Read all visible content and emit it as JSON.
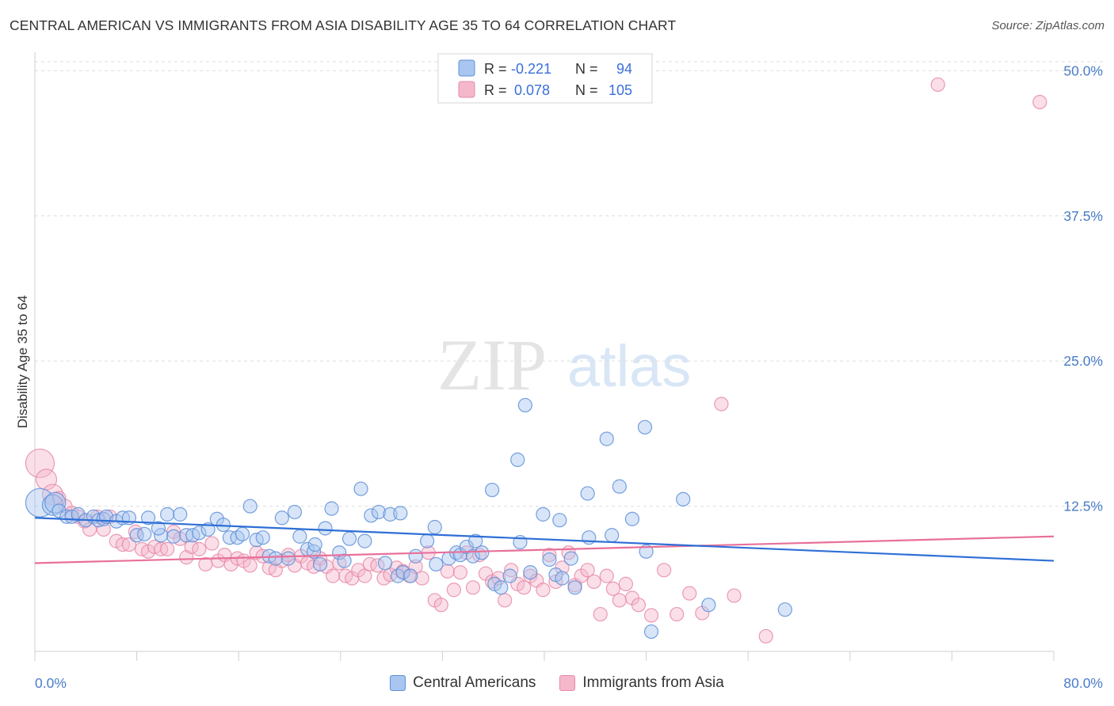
{
  "title": "CENTRAL AMERICAN VS IMMIGRANTS FROM ASIA DISABILITY AGE 35 TO 64 CORRELATION CHART",
  "source": "Source: ZipAtlas.com",
  "watermark": {
    "zip": "ZIP",
    "atlas": "atlas"
  },
  "colors": {
    "blue_fill": "#a9c6f0",
    "blue_stroke": "#5d8fd8",
    "blue_line": "#2e6fd6",
    "pink_fill": "#f5b8cb",
    "pink_stroke": "#e889a8",
    "pink_line": "#e8709a",
    "tick_text": "#4a7cc7",
    "grid": "#dedede"
  },
  "legend_box": {
    "rows": [
      {
        "r_label": "R =",
        "r_value": "-0.221",
        "n_label": "N =",
        "n_value": "94"
      },
      {
        "r_label": "R =",
        "r_value": "0.078",
        "n_label": "N =",
        "n_value": "105"
      }
    ]
  },
  "bottom_legend": [
    "Central Americans",
    "Immigrants from Asia"
  ],
  "chart_data": {
    "type": "scatter",
    "title": "CENTRAL AMERICAN VS IMMIGRANTS FROM ASIA DISABILITY AGE 35 TO 64 CORRELATION CHART",
    "xlabel": "",
    "ylabel": "Disability Age 35 to 64",
    "xlim": [
      0,
      80
    ],
    "ylim": [
      0,
      52
    ],
    "x_tick_labels": [
      "0.0%",
      "80.0%"
    ],
    "y_ticks": [
      12.5,
      25.0,
      37.5,
      50.0
    ],
    "y_tick_labels": [
      "12.5%",
      "25.0%",
      "37.5%",
      "50.0%"
    ],
    "grid": "horizontal dashed",
    "legend": "top-center",
    "series": [
      {
        "name": "Central Americans",
        "r": -0.221,
        "n": 94,
        "trend": {
          "x": [
            0,
            80
          ],
          "y": [
            11.5,
            7.8
          ]
        },
        "points": [
          [
            0.4,
            12.8
          ],
          [
            1.4,
            12.6
          ],
          [
            1.6,
            12.8
          ],
          [
            1.9,
            12.1
          ],
          [
            2.5,
            11.6
          ],
          [
            2.9,
            11.6
          ],
          [
            3.4,
            11.8
          ],
          [
            4.0,
            11.3
          ],
          [
            4.6,
            11.6
          ],
          [
            5.0,
            11.3
          ],
          [
            5.4,
            11.4
          ],
          [
            5.6,
            11.6
          ],
          [
            6.4,
            11.2
          ],
          [
            6.9,
            11.5
          ],
          [
            7.4,
            11.5
          ],
          [
            8.0,
            10.0
          ],
          [
            8.6,
            10.1
          ],
          [
            8.9,
            11.5
          ],
          [
            9.9,
            10.0
          ],
          [
            9.7,
            10.6
          ],
          [
            10.4,
            11.8
          ],
          [
            10.9,
            9.9
          ],
          [
            11.4,
            11.8
          ],
          [
            11.9,
            10.0
          ],
          [
            12.4,
            10.0
          ],
          [
            12.9,
            10.2
          ],
          [
            13.6,
            10.5
          ],
          [
            14.3,
            11.4
          ],
          [
            14.8,
            10.9
          ],
          [
            15.3,
            9.8
          ],
          [
            15.9,
            9.8
          ],
          [
            16.3,
            10.1
          ],
          [
            16.9,
            12.5
          ],
          [
            17.4,
            9.6
          ],
          [
            17.9,
            9.8
          ],
          [
            18.4,
            8.2
          ],
          [
            18.9,
            8.0
          ],
          [
            19.4,
            11.5
          ],
          [
            19.9,
            8.0
          ],
          [
            20.4,
            12.0
          ],
          [
            20.8,
            9.9
          ],
          [
            21.4,
            8.8
          ],
          [
            21.9,
            8.6
          ],
          [
            22.4,
            7.5
          ],
          [
            22.8,
            10.6
          ],
          [
            23.3,
            12.3
          ],
          [
            23.9,
            8.5
          ],
          [
            24.3,
            7.8
          ],
          [
            24.7,
            9.7
          ],
          [
            25.6,
            14.0
          ],
          [
            25.9,
            9.5
          ],
          [
            26.4,
            11.7
          ],
          [
            27.0,
            12.0
          ],
          [
            27.5,
            7.6
          ],
          [
            27.9,
            11.8
          ],
          [
            28.5,
            6.5
          ],
          [
            28.7,
            11.9
          ],
          [
            28.9,
            6.8
          ],
          [
            29.5,
            6.5
          ],
          [
            29.9,
            8.2
          ],
          [
            30.8,
            9.5
          ],
          [
            31.4,
            10.7
          ],
          [
            31.5,
            7.5
          ],
          [
            32.5,
            8.0
          ],
          [
            33.1,
            8.5
          ],
          [
            33.4,
            8.3
          ],
          [
            33.9,
            9.0
          ],
          [
            34.4,
            8.2
          ],
          [
            34.6,
            9.5
          ],
          [
            35.1,
            8.5
          ],
          [
            35.9,
            13.9
          ],
          [
            36.1,
            5.8
          ],
          [
            36.6,
            5.5
          ],
          [
            37.3,
            6.5
          ],
          [
            37.9,
            16.5
          ],
          [
            38.1,
            9.4
          ],
          [
            38.9,
            6.8
          ],
          [
            39.9,
            11.8
          ],
          [
            40.4,
            7.9
          ],
          [
            40.9,
            6.6
          ],
          [
            41.2,
            11.3
          ],
          [
            41.4,
            6.3
          ],
          [
            42.1,
            8.0
          ],
          [
            42.4,
            5.5
          ],
          [
            43.4,
            13.6
          ],
          [
            44.9,
            18.3
          ],
          [
            45.3,
            10.0
          ],
          [
            45.9,
            14.2
          ],
          [
            46.9,
            11.4
          ],
          [
            47.9,
            19.3
          ],
          [
            48.4,
            1.7
          ],
          [
            50.9,
            13.1
          ],
          [
            52.9,
            4.0
          ],
          [
            58.9,
            3.6
          ],
          [
            38.5,
            21.2
          ],
          [
            43.5,
            9.8
          ],
          [
            48.0,
            8.6
          ],
          [
            22.0,
            9.2
          ]
        ],
        "sizes": [
          [
            0.4,
            "xl"
          ],
          [
            1.4,
            "l"
          ],
          [
            1.6,
            "l"
          ]
        ]
      },
      {
        "name": "Immigrants from Asia",
        "r": 0.078,
        "n": 105,
        "trend": {
          "x": [
            0,
            80
          ],
          "y": [
            7.6,
            9.9
          ]
        },
        "points": [
          [
            0.4,
            16.2
          ],
          [
            0.9,
            14.8
          ],
          [
            1.4,
            13.5
          ],
          [
            1.9,
            13.2
          ],
          [
            2.4,
            12.5
          ],
          [
            2.9,
            11.9
          ],
          [
            3.4,
            11.6
          ],
          [
            3.9,
            11.2
          ],
          [
            4.3,
            10.5
          ],
          [
            4.9,
            11.6
          ],
          [
            5.4,
            10.5
          ],
          [
            5.9,
            11.6
          ],
          [
            6.4,
            9.5
          ],
          [
            6.9,
            9.2
          ],
          [
            7.4,
            9.2
          ],
          [
            7.9,
            10.3
          ],
          [
            8.4,
            8.8
          ],
          [
            8.9,
            8.6
          ],
          [
            9.4,
            9.0
          ],
          [
            9.9,
            8.8
          ],
          [
            10.4,
            8.8
          ],
          [
            10.9,
            10.3
          ],
          [
            11.4,
            9.7
          ],
          [
            11.9,
            8.1
          ],
          [
            12.3,
            9.0
          ],
          [
            12.9,
            8.8
          ],
          [
            13.4,
            7.5
          ],
          [
            13.9,
            9.3
          ],
          [
            14.4,
            7.8
          ],
          [
            14.9,
            8.3
          ],
          [
            15.4,
            7.5
          ],
          [
            15.9,
            8.0
          ],
          [
            16.4,
            7.8
          ],
          [
            16.9,
            7.4
          ],
          [
            17.4,
            8.5
          ],
          [
            17.9,
            8.2
          ],
          [
            18.4,
            7.2
          ],
          [
            18.9,
            7.0
          ],
          [
            19.4,
            7.8
          ],
          [
            19.9,
            8.3
          ],
          [
            20.4,
            7.4
          ],
          [
            20.9,
            8.2
          ],
          [
            21.4,
            7.6
          ],
          [
            21.9,
            7.3
          ],
          [
            22.4,
            8.0
          ],
          [
            22.9,
            7.3
          ],
          [
            23.4,
            6.5
          ],
          [
            23.9,
            7.6
          ],
          [
            24.4,
            6.5
          ],
          [
            24.9,
            6.3
          ],
          [
            25.4,
            7.0
          ],
          [
            25.9,
            6.5
          ],
          [
            26.3,
            7.5
          ],
          [
            26.9,
            7.4
          ],
          [
            27.4,
            6.3
          ],
          [
            27.9,
            6.6
          ],
          [
            28.4,
            7.2
          ],
          [
            28.9,
            6.9
          ],
          [
            29.4,
            6.5
          ],
          [
            29.9,
            7.3
          ],
          [
            30.4,
            6.3
          ],
          [
            30.9,
            8.5
          ],
          [
            31.4,
            4.4
          ],
          [
            31.9,
            4.0
          ],
          [
            32.4,
            6.9
          ],
          [
            32.9,
            5.3
          ],
          [
            33.4,
            6.8
          ],
          [
            33.9,
            8.5
          ],
          [
            34.4,
            5.5
          ],
          [
            34.9,
            8.3
          ],
          [
            35.4,
            6.7
          ],
          [
            35.9,
            6.0
          ],
          [
            36.4,
            6.3
          ],
          [
            36.9,
            4.4
          ],
          [
            37.4,
            7.0
          ],
          [
            37.9,
            5.8
          ],
          [
            38.4,
            5.5
          ],
          [
            38.9,
            6.5
          ],
          [
            39.4,
            6.1
          ],
          [
            39.9,
            5.3
          ],
          [
            40.4,
            8.3
          ],
          [
            40.9,
            6.0
          ],
          [
            41.4,
            7.2
          ],
          [
            41.9,
            8.5
          ],
          [
            42.4,
            5.7
          ],
          [
            42.9,
            6.5
          ],
          [
            43.4,
            7.0
          ],
          [
            43.9,
            6.0
          ],
          [
            44.4,
            3.2
          ],
          [
            44.9,
            6.5
          ],
          [
            45.4,
            5.4
          ],
          [
            45.9,
            4.4
          ],
          [
            46.4,
            5.8
          ],
          [
            46.9,
            4.6
          ],
          [
            47.4,
            4.0
          ],
          [
            48.4,
            3.1
          ],
          [
            49.4,
            7.0
          ],
          [
            50.4,
            3.2
          ],
          [
            51.4,
            5.0
          ],
          [
            52.4,
            3.3
          ],
          [
            54.9,
            4.8
          ],
          [
            57.4,
            1.3
          ],
          [
            53.9,
            21.3
          ],
          [
            70.9,
            48.8
          ],
          [
            78.9,
            47.3
          ]
        ],
        "sizes": [
          [
            0.4,
            "xl"
          ],
          [
            0.9,
            "l"
          ],
          [
            1.4,
            "l"
          ]
        ]
      }
    ]
  }
}
